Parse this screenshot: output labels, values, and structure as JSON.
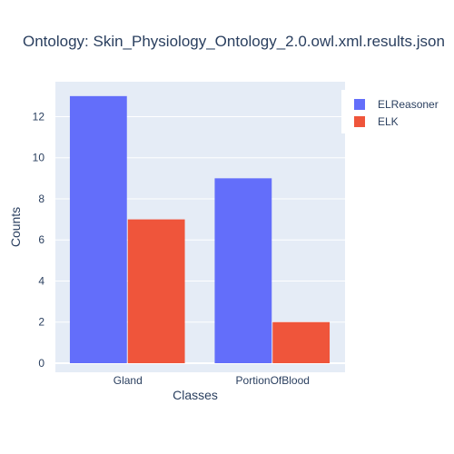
{
  "chart_data": {
    "type": "bar",
    "title": "Ontology: Skin_Physiology_Ontology_2.0.owl.xml.results.json",
    "xlabel": "Classes",
    "ylabel": "Counts",
    "categories": [
      "Gland",
      "PortionOfBlood"
    ],
    "series": [
      {
        "name": "ELReasoner",
        "color": "#636efa",
        "values": [
          13,
          9
        ]
      },
      {
        "name": "ELK",
        "color": "#ef553b",
        "values": [
          7,
          2
        ]
      }
    ],
    "yticks": [
      0,
      2,
      4,
      6,
      8,
      10,
      12
    ],
    "ylim": [
      0,
      13.7
    ],
    "grid": true,
    "legend_position": "top-right",
    "plot_background": "#e5ecf6"
  }
}
